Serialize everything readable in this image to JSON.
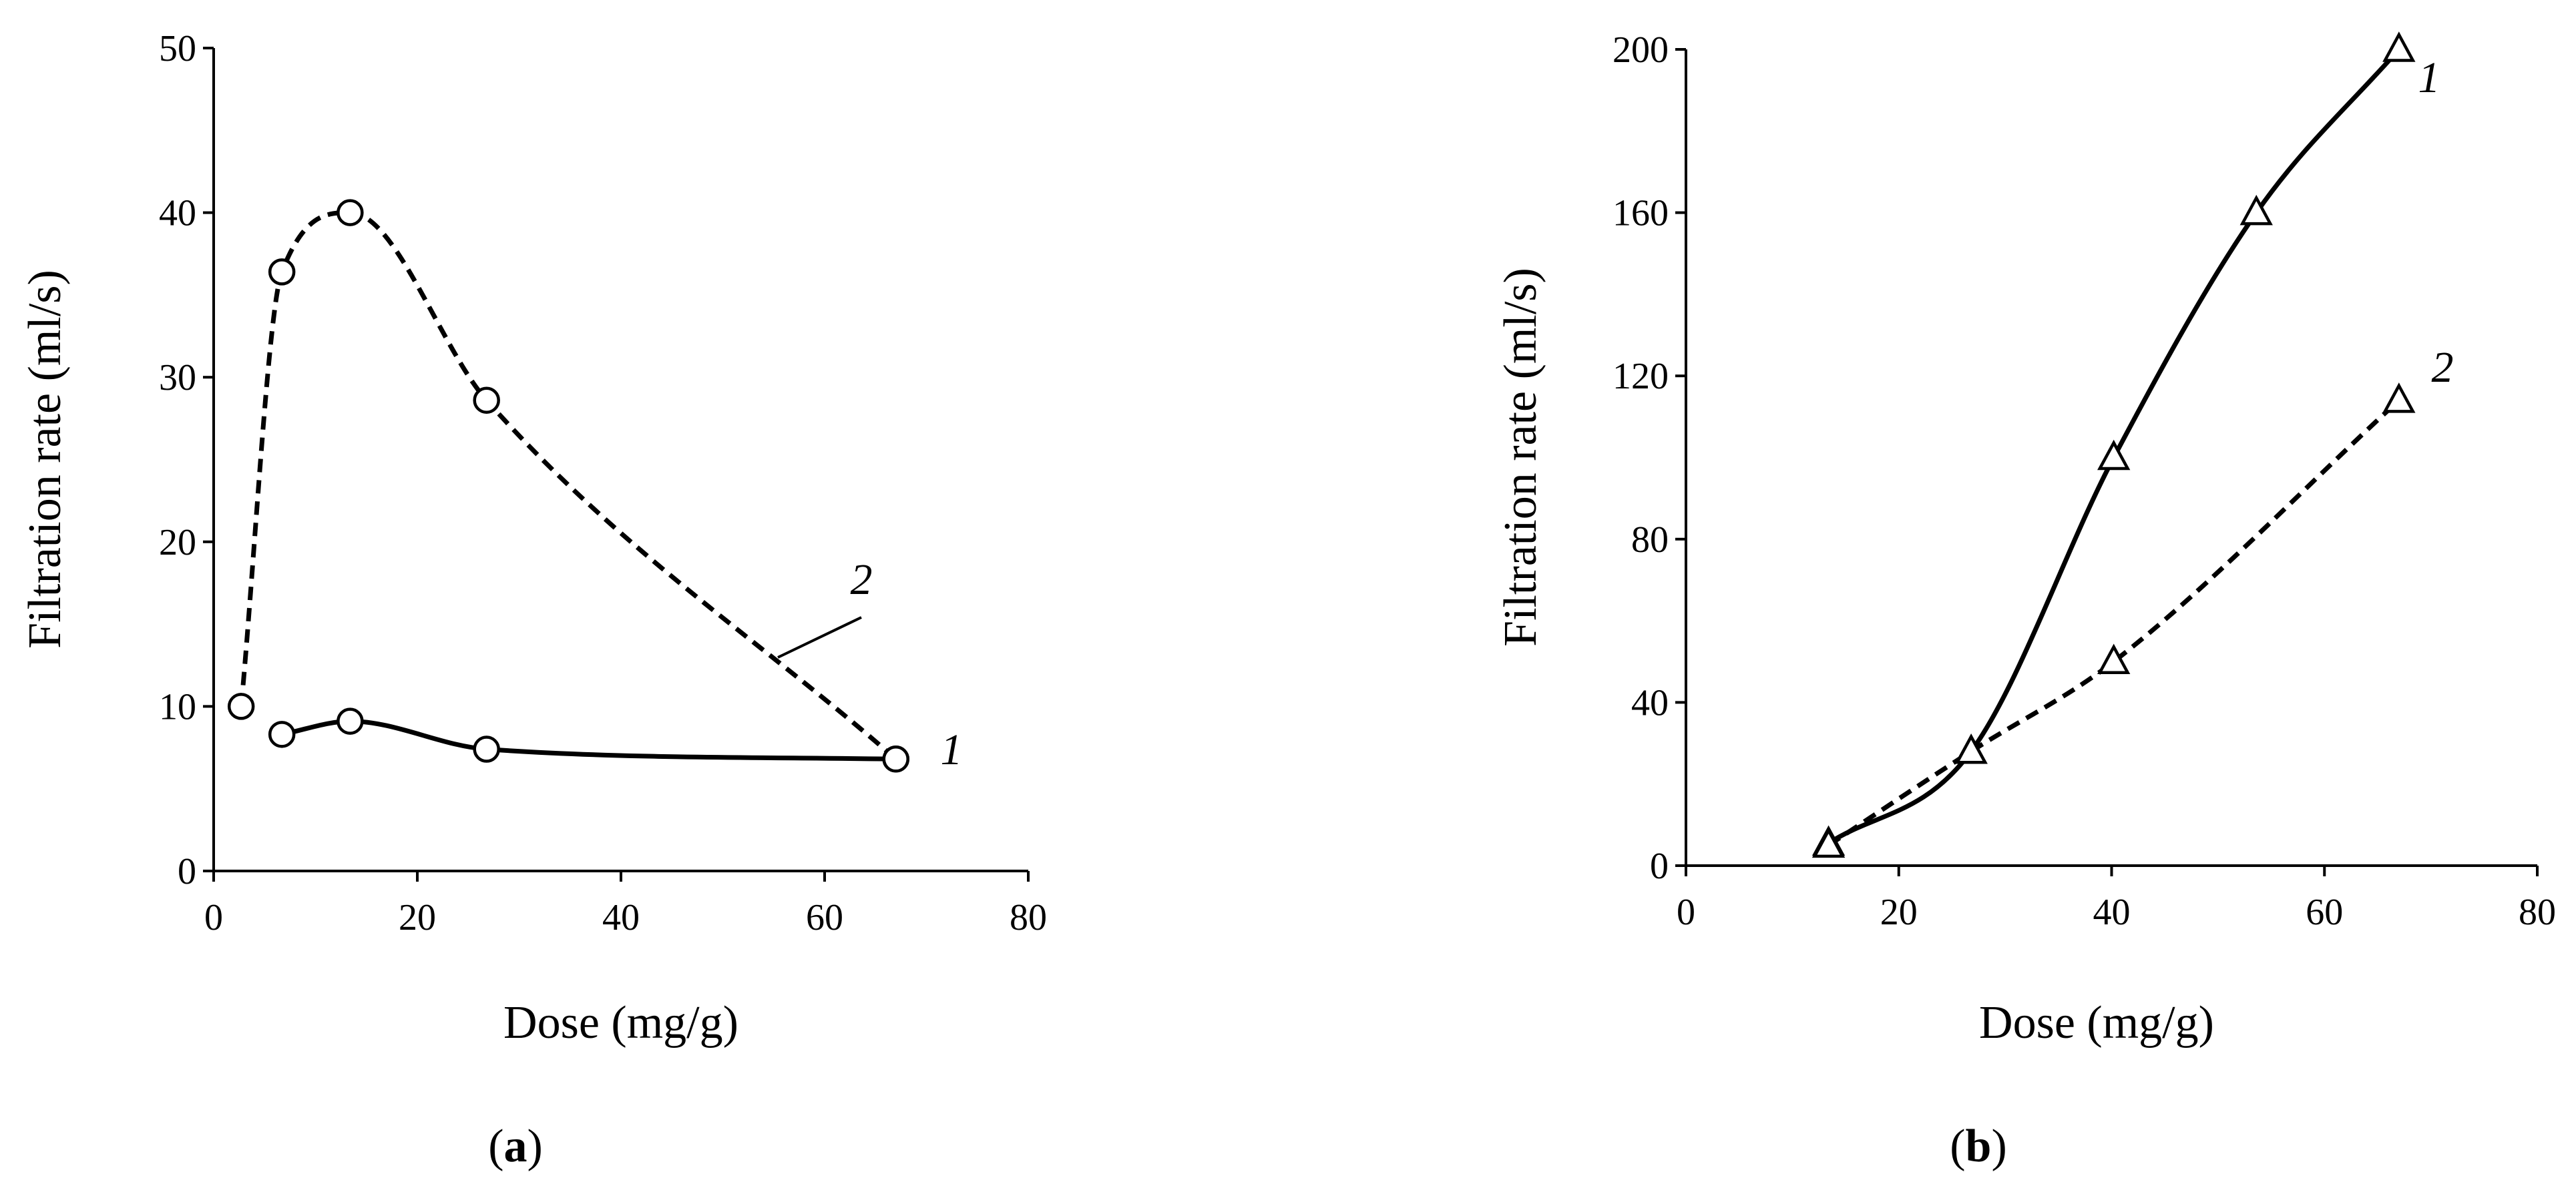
{
  "chart_data": [
    {
      "type": "line",
      "panel": "a",
      "caption": "(a)",
      "caption_letter": "a",
      "xlabel": "Dose (mg/g)",
      "ylabel": "Filtration rate (ml/s)",
      "xlim": [
        0,
        80
      ],
      "ylim": [
        0,
        50
      ],
      "xticks": [
        0,
        20,
        40,
        60,
        80
      ],
      "yticks": [
        0,
        10,
        20,
        30,
        40,
        50
      ],
      "grid": false,
      "series": [
        {
          "label": "1",
          "style": "solid",
          "marker": "circle",
          "x": [
            6.7,
            13.4,
            26.8,
            67.0
          ],
          "y": [
            8.3,
            9.1,
            7.4,
            6.8
          ]
        },
        {
          "label": "2",
          "style": "dashed",
          "marker": "circle",
          "x": [
            2.7,
            6.7,
            13.4,
            26.8,
            67.0
          ],
          "y": [
            10.0,
            36.4,
            40.0,
            28.6,
            6.8
          ]
        }
      ]
    },
    {
      "type": "line",
      "panel": "b",
      "caption": "(b)",
      "caption_letter": "b",
      "xlabel": "Dose (mg/g)",
      "ylabel": "Filtration rate (ml/s)",
      "xlim": [
        0,
        80
      ],
      "ylim": [
        0,
        200
      ],
      "xticks": [
        0,
        20,
        40,
        60,
        80
      ],
      "yticks": [
        0,
        40,
        80,
        120,
        160,
        200
      ],
      "grid": false,
      "series": [
        {
          "label": "1",
          "style": "solid",
          "marker": "triangle",
          "x": [
            13.4,
            26.8,
            40.2,
            53.6,
            67.0
          ],
          "y": [
            5.5,
            28.0,
            100.0,
            160.0,
            200.0
          ]
        },
        {
          "label": "2",
          "style": "dashed",
          "marker": "triangle",
          "x": [
            13.4,
            26.8,
            40.2,
            67.0
          ],
          "y": [
            5.0,
            28.0,
            50.0,
            114.0
          ]
        }
      ]
    }
  ]
}
